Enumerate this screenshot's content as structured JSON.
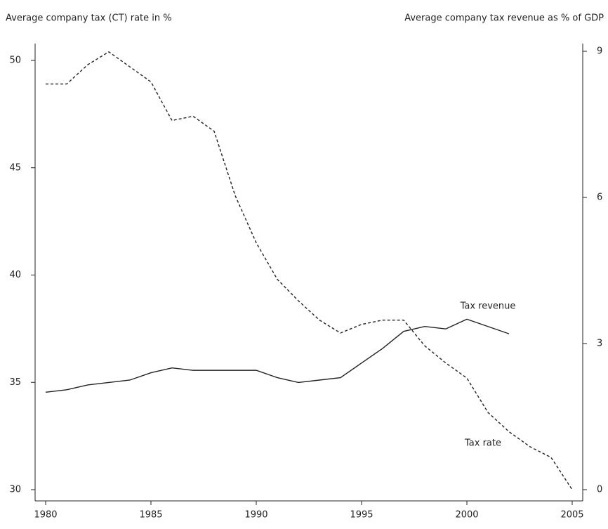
{
  "chart_data": {
    "type": "line",
    "title_left": "Average company tax (CT) rate in %",
    "title_right": "Average company tax revenue as % of GDP",
    "x": [
      1980,
      1981,
      1982,
      1983,
      1984,
      1985,
      1986,
      1987,
      1988,
      1989,
      1990,
      1991,
      1992,
      1993,
      1994,
      1995,
      1996,
      1997,
      1998,
      1999,
      2000,
      2001,
      2002,
      2003,
      2004,
      2005
    ],
    "xlim": [
      1980,
      2005
    ],
    "xticks": [
      1980,
      1985,
      1990,
      1995,
      2000,
      2005
    ],
    "ylim": [
      30,
      50
    ],
    "yticks": [
      30,
      35,
      40,
      45,
      50
    ],
    "y2lim": [
      0,
      9
    ],
    "y2ticks": [
      0,
      3,
      6,
      9
    ],
    "series": [
      {
        "name": "Tax rate",
        "color": "#222222",
        "dash": true,
        "values": [
          48.9,
          48.9,
          49.8,
          50.4,
          49.7,
          49.0,
          47.2,
          47.4,
          46.7,
          43.7,
          41.5,
          39.8,
          38.8,
          37.9,
          37.3,
          37.7,
          37.9,
          37.9,
          36.7,
          35.9,
          35.2,
          33.6,
          32.7,
          32.0,
          31.5,
          30.0
        ]
      },
      {
        "name": "Tax revenue",
        "color": "#222222",
        "dash": false,
        "axis": "y2",
        "values": [
          2.0,
          2.05,
          2.15,
          2.2,
          2.25,
          2.4,
          2.5,
          2.45,
          2.45,
          2.45,
          2.45,
          2.3,
          2.2,
          2.25,
          2.3,
          2.6,
          2.9,
          3.25,
          3.35,
          3.3,
          3.5,
          3.35,
          3.2,
          null,
          null,
          null
        ]
      }
    ]
  }
}
